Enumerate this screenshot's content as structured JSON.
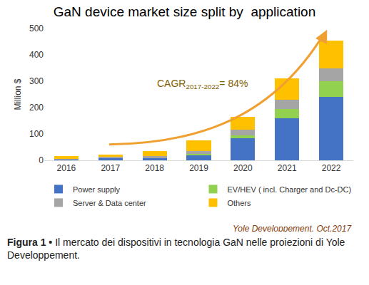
{
  "chart_data": {
    "type": "bar",
    "title": "GaN device market size split by  application",
    "y_label": "Million $",
    "categories": [
      "2016",
      "2017",
      "2018",
      "2019",
      "2020",
      "2021",
      "2022"
    ],
    "series": [
      {
        "name": "Power supply",
        "color": "#4472c4",
        "values": [
          2,
          8,
          8,
          18,
          85,
          160,
          240
        ]
      },
      {
        "name": "EV/HEV ( incl. Charger and Dc-DC)",
        "color": "#92d050",
        "values": [
          0,
          0,
          0,
          5,
          10,
          35,
          60
        ]
      },
      {
        "name": "Server & Data center",
        "color": "#a5a5a5",
        "values": [
          3,
          5,
          7,
          12,
          20,
          35,
          50
        ]
      },
      {
        "name": "Others",
        "color": "#ffc000",
        "values": [
          10,
          9,
          20,
          40,
          50,
          80,
          105
        ]
      }
    ],
    "ylim": [
      0,
      500
    ],
    "yticks": [
      0,
      100,
      200,
      300,
      400,
      500
    ],
    "stacked": true,
    "grid": false,
    "legend": "bottom",
    "annotations": [
      {
        "text": "CAGR",
        "subscript": "2017-2022",
        "after": "= 84%"
      }
    ],
    "source": "Yole Developpement, Oct.2017"
  },
  "caption": {
    "label": "Figura 1 •",
    "text": "Il mercato dei dispositivi in tecnologia GaN nelle proiezioni di Yole Developpement."
  }
}
